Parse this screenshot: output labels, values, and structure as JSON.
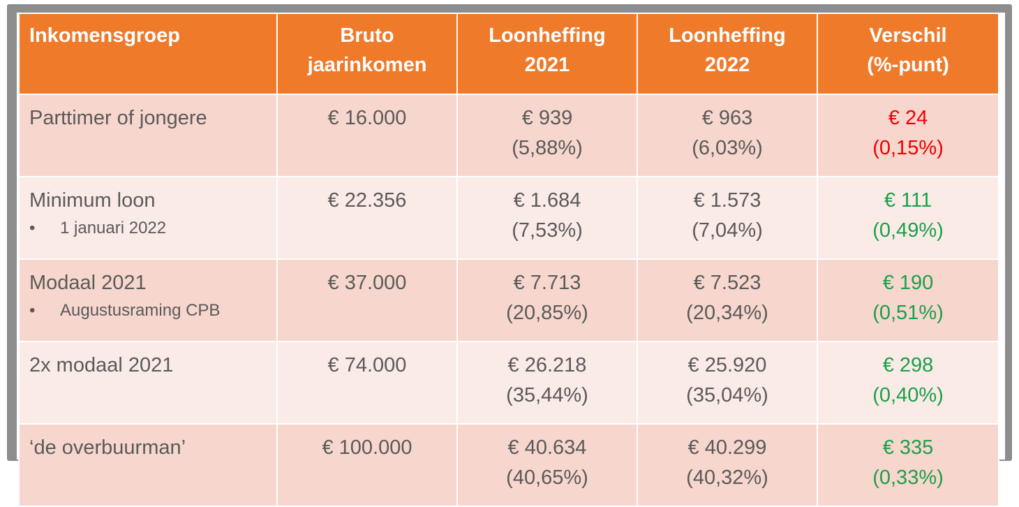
{
  "header": {
    "col1": "Inkomensgroep",
    "col2_line1": "Bruto",
    "col2_line2": "jaarinkomen",
    "col3_line1": "Loonheffing",
    "col3_line2": "2021",
    "col4_line1": "Loonheffing",
    "col4_line2": "2022",
    "col5_line1": "Verschil",
    "col5_line2": "(%-punt)"
  },
  "rows": [
    {
      "label": "Parttimer of jongere",
      "sublabel": "",
      "income": "€ 16.000",
      "tax2021": "€ 939",
      "tax2021_pct": "(5,88%)",
      "tax2022": "€ 963",
      "tax2022_pct": "(6,03%)",
      "diff": "€ 24",
      "diff_pct": "(0,15%)",
      "diff_color": "#ee0000"
    },
    {
      "label": "Minimum loon",
      "sublabel": "1 januari 2022",
      "income": "€ 22.356",
      "tax2021": "€ 1.684",
      "tax2021_pct": "(7,53%)",
      "tax2022": "€ 1.573",
      "tax2022_pct": "(7,04%)",
      "diff": "€ 111",
      "diff_pct": "(0,49%)",
      "diff_color": "#1aa04a"
    },
    {
      "label": "Modaal 2021",
      "sublabel": "Augustusraming CPB",
      "income": "€ 37.000",
      "tax2021": "€ 7.713",
      "tax2021_pct": "(20,85%)",
      "tax2022": "€ 7.523",
      "tax2022_pct": "(20,34%)",
      "diff": "€ 190",
      "diff_pct": "(0,51%)",
      "diff_color": "#1aa04a"
    },
    {
      "label": "2x modaal 2021",
      "sublabel": "",
      "income": "€ 74.000",
      "tax2021": "€ 26.218",
      "tax2021_pct": "(35,44%)",
      "tax2022": "€ 25.920",
      "tax2022_pct": "(35,04%)",
      "diff": "€ 298",
      "diff_pct": "(0,40%)",
      "diff_color": "#1aa04a"
    },
    {
      "label": "‘de overbuurman’",
      "sublabel": "",
      "income": "€ 100.000",
      "tax2021": "€ 40.634",
      "tax2021_pct": "(40,65%)",
      "tax2022": "€ 40.299",
      "tax2022_pct": "(40,32%)",
      "diff": "€ 335",
      "diff_pct": "(0,33%)",
      "diff_color": "#1aa04a"
    }
  ],
  "colors": {
    "header_bg": "#ef7a2a",
    "row_dark": "#f7d6cd",
    "row_light": "#fbebe7",
    "negative": "#ee0000",
    "positive": "#1aa04a"
  }
}
